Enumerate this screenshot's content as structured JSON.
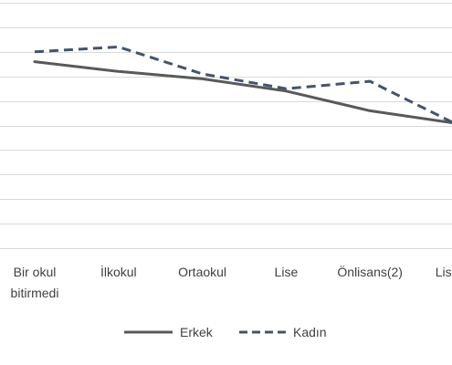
{
  "chart_data": {
    "type": "line",
    "title": "",
    "xlabel": "",
    "ylabel": "",
    "categories": [
      [
        "Bir okul",
        "bitirmedi"
      ],
      [
        "İlkokul"
      ],
      [
        "Ortaokul"
      ],
      [
        "Lise"
      ],
      [
        "Önlisans(2)"
      ],
      [
        "Lisans"
      ]
    ],
    "ylim": [
      0,
      10
    ],
    "grid": true,
    "legend_position": "bottom",
    "series": [
      {
        "name": "Erkek",
        "values": [
          7.6,
          7.2,
          6.9,
          6.4,
          5.6,
          5.1
        ],
        "color": "#595959",
        "dash": "solid"
      },
      {
        "name": "Kadın",
        "values": [
          8.0,
          8.2,
          7.1,
          6.5,
          6.8,
          5.1
        ],
        "color": "#44546a",
        "dash": "dashed"
      }
    ]
  }
}
